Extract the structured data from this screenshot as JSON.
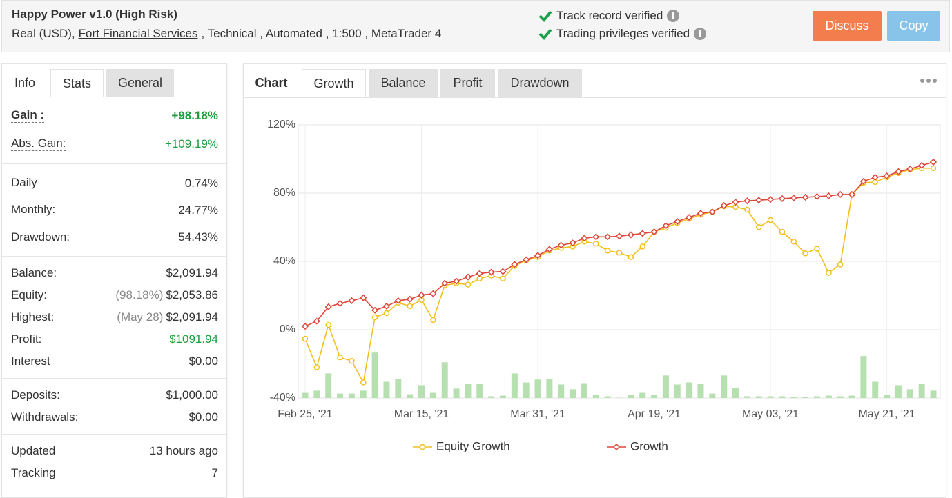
{
  "header": {
    "title": "Happy Power v1.0 (High Risk)",
    "subtitle_parts": [
      "Real (USD),",
      "Fort Financial Services",
      ", Technical , Automated , 1:500 , MetaTrader 4"
    ],
    "verifications": [
      "Track record verified",
      "Trading privileges verified"
    ],
    "buttons": [
      "Discuss",
      "Copy"
    ]
  },
  "left_panel": {
    "tabs": [
      "Info",
      "Stats",
      "General"
    ],
    "groups": [
      [
        {
          "label": "Gain :",
          "value": "+98.18%",
          "bold": true,
          "dotted": true,
          "color": "#1e9e3e"
        },
        {
          "label": "Abs. Gain:",
          "value": "+109.19%",
          "dotted": true,
          "color": "#1e9e3e"
        }
      ],
      [
        {
          "label": "Daily",
          "value": "0.74%",
          "dotted": true
        },
        {
          "label": "Monthly:",
          "value": "24.77%",
          "dotted": true
        },
        {
          "label": "Drawdown:",
          "value": "54.43%"
        }
      ],
      [
        {
          "label": "Balance:",
          "value": "$2,091.94"
        },
        {
          "label": "Equity:",
          "note": "(98.18%)",
          "value": "$2,053.86"
        },
        {
          "label": "Highest:",
          "note": "(May 28)",
          "value": "$2,091.94"
        },
        {
          "label": "Profit:",
          "value": "$1091.94",
          "color": "#1e9e3e"
        },
        {
          "label": "Interest",
          "value": "$0.00"
        }
      ],
      [
        {
          "label": "Deposits:",
          "value": "$1,000.00"
        },
        {
          "label": "Withdrawals:",
          "value": "$0.00"
        }
      ],
      [
        {
          "label": "Updated",
          "value": "13 hours ago"
        },
        {
          "label": "Tracking",
          "value": "7"
        }
      ]
    ]
  },
  "right_panel": {
    "label": "Chart",
    "tabs": [
      "Growth",
      "Balance",
      "Profit",
      "Drawdown"
    ]
  },
  "chart_data": {
    "type": "line",
    "grid": true,
    "legend": "bottom",
    "categories": [
      "Feb 25, '21",
      null,
      null,
      null,
      null,
      null,
      null,
      null,
      null,
      null,
      "Mar 15, '21",
      null,
      null,
      null,
      null,
      null,
      null,
      null,
      null,
      null,
      "Mar 31, '21",
      null,
      null,
      null,
      null,
      null,
      null,
      null,
      null,
      null,
      "Apr 19, '21",
      null,
      null,
      null,
      null,
      null,
      null,
      null,
      null,
      null,
      "May 03, '21",
      null,
      null,
      null,
      null,
      null,
      null,
      null,
      null,
      null,
      "May 21, '21",
      null,
      null,
      null,
      null
    ],
    "ylim": [
      -40,
      120
    ],
    "yticks": [
      {
        "value": -40,
        "label": "-40%"
      },
      {
        "value": 0,
        "label": "0%"
      },
      {
        "value": 40,
        "label": "40%"
      },
      {
        "value": 80,
        "label": "80%"
      },
      {
        "value": 120,
        "label": "120%"
      }
    ],
    "series": [
      {
        "type": "bar",
        "color": "#b6e0b0",
        "values": [
          -37,
          -35.7,
          -25.6,
          -37.4,
          -37.4,
          -35.7,
          -13.4,
          -30.5,
          -28.8,
          -37.8,
          -32.5,
          -37,
          -19.1,
          -34.5,
          -31.7,
          -31.7,
          -39,
          -38.6,
          -25.6,
          -30.9,
          -29.2,
          -28.8,
          -32.1,
          -34.9,
          -31.3,
          -38.2,
          -39,
          -39.8,
          -38.2,
          -37,
          -38.2,
          -26.8,
          -32.1,
          -30.9,
          -31.7,
          -37.4,
          -26.8,
          -34.1,
          -39,
          -39,
          -39,
          -39,
          -39.4,
          -39.4,
          -39,
          -38.6,
          -39,
          -38.6,
          -15.4,
          -30.5,
          -38.2,
          -32.5,
          -34.9,
          -31.7,
          -35.7
        ]
      },
      {
        "name": "Equity Growth",
        "color": "#f2c01e",
        "marker": "circle",
        "values": [
          -5.3,
          -22,
          2.8,
          -16.2,
          -18.3,
          -30.9,
          7.3,
          9.7,
          15.8,
          13.8,
          17.5,
          5.7,
          26,
          27.2,
          26.4,
          30,
          31.7,
          30,
          37.4,
          40.6,
          42.6,
          46.3,
          47.9,
          48.7,
          51.6,
          50.4,
          46.3,
          45.1,
          42.6,
          48.7,
          57.3,
          59.7,
          62.5,
          65,
          67.4,
          69,
          72.3,
          71.9,
          70.3,
          60.1,
          64.2,
          57.3,
          51.6,
          44.7,
          47.5,
          33.3,
          38.2,
          79.2,
          86.1,
          86.5,
          89.3,
          91.8,
          93.8,
          94.6,
          94.6
        ]
      },
      {
        "name": "Growth",
        "color": "#e0453a",
        "marker": "diamond",
        "values": [
          2,
          5,
          13.4,
          15.4,
          17,
          18.7,
          11.4,
          13.8,
          17,
          17.9,
          20.3,
          21.1,
          27.2,
          28.4,
          30.9,
          32.9,
          33.7,
          34.1,
          38.2,
          41,
          43.5,
          47.1,
          49.5,
          50.8,
          53.6,
          54.4,
          54.4,
          54.8,
          55.6,
          56.4,
          57.3,
          60.9,
          63.4,
          65.8,
          68.2,
          69,
          72.7,
          74.7,
          75.5,
          75.9,
          76.3,
          76.8,
          77.2,
          77.6,
          78,
          78.4,
          79.2,
          79.2,
          86.9,
          89.3,
          90.1,
          92.6,
          94.2,
          96.2,
          98.2
        ]
      }
    ]
  }
}
